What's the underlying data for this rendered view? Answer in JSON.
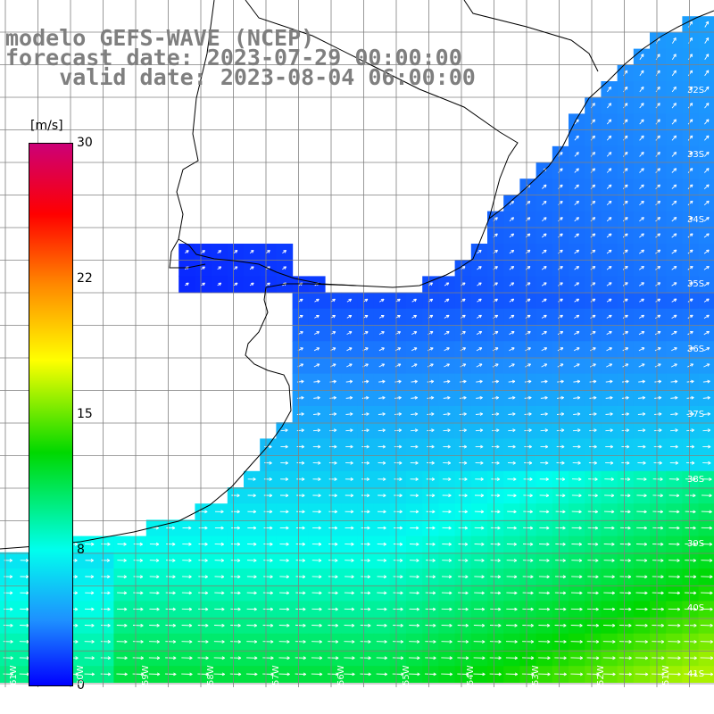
{
  "title": {
    "line1": "modelo GEFS-WAVE (NCEP)",
    "line2": "forecast date: 2023-07-29 00:00:00",
    "line3": "    valid date: 2023-08-04 06:00:00"
  },
  "colorbar": {
    "unit": "[m/s]",
    "ticks": [
      "30",
      "22",
      "15",
      "8",
      "0"
    ],
    "tick_values": [
      30,
      22,
      15,
      8,
      0
    ],
    "colors": [
      "#0000ff",
      "#1e90ff",
      "#00ffee",
      "#00d800",
      "#ffff00",
      "#ff8800",
      "#ff0000",
      "#cc0077"
    ]
  },
  "map": {
    "lat_labels": [
      "32S",
      "33S",
      "34S",
      "35S",
      "36S",
      "37S",
      "38S",
      "39S",
      "40S",
      "41S"
    ],
    "lon_labels": [
      "61W",
      "60W",
      "59W",
      "58W",
      "57W",
      "56W",
      "55W",
      "54W",
      "53W",
      "52W",
      "51W"
    ],
    "background_color": "#ffffff",
    "grid_color": "#808080",
    "coast_color": "#000000",
    "arrow_color": "#ffffff"
  }
}
